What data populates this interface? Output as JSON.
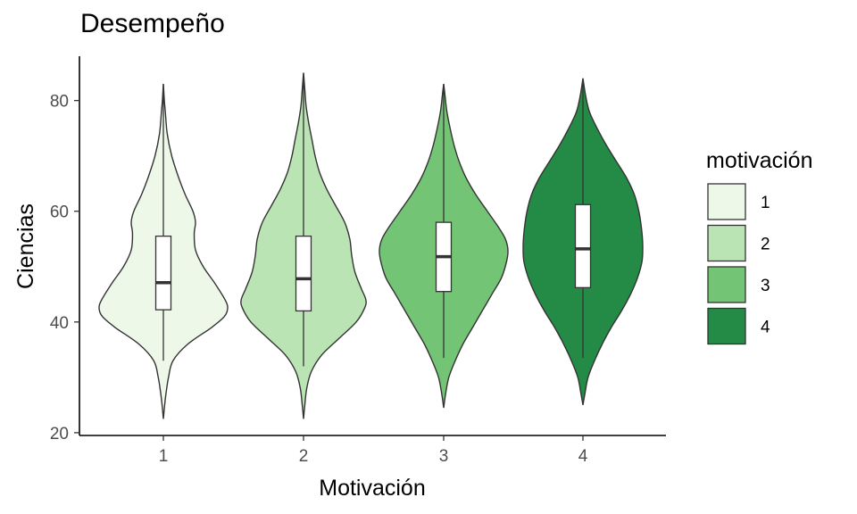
{
  "chart_data": {
    "type": "violin",
    "title": "Desempeño",
    "xlabel": "Motivación",
    "ylabel": "Ciencias",
    "categories": [
      "1",
      "2",
      "3",
      "4"
    ],
    "y_ticks": [
      20,
      40,
      60,
      80
    ],
    "ylim": [
      19.5,
      88
    ],
    "grid": false,
    "legend": {
      "title": "motivación",
      "position": "right",
      "labels": [
        "1",
        "2",
        "3",
        "4"
      ]
    },
    "colors": [
      "#edf8e9",
      "#bae4b3",
      "#74c476",
      "#238b45"
    ],
    "series": [
      {
        "category": "1",
        "fill": "#edf8e9",
        "box": {
          "q1": 42.2,
          "median": 47.1,
          "q3": 55.5,
          "whisker_low": 33,
          "whisker_high": 83
        },
        "density": [
          [
            22.5,
            0.0
          ],
          [
            25,
            0.02
          ],
          [
            27,
            0.04
          ],
          [
            30,
            0.08
          ],
          [
            33,
            0.15
          ],
          [
            36,
            0.38
          ],
          [
            39,
            0.75
          ],
          [
            41,
            0.95
          ],
          [
            42.5,
            1.0
          ],
          [
            44,
            0.96
          ],
          [
            47,
            0.8
          ],
          [
            50,
            0.62
          ],
          [
            53,
            0.5
          ],
          [
            56,
            0.48
          ],
          [
            58,
            0.5
          ],
          [
            60,
            0.46
          ],
          [
            63,
            0.34
          ],
          [
            66,
            0.24
          ],
          [
            70,
            0.13
          ],
          [
            74,
            0.06
          ],
          [
            78,
            0.03
          ],
          [
            80,
            0.015
          ],
          [
            83,
            0.0
          ]
        ]
      },
      {
        "category": "2",
        "fill": "#bae4b3",
        "box": {
          "q1": 42.0,
          "median": 47.8,
          "q3": 55.5,
          "whisker_low": 32,
          "whisker_high": 85
        },
        "density": [
          [
            22.5,
            0.0
          ],
          [
            25,
            0.02
          ],
          [
            28,
            0.05
          ],
          [
            31,
            0.12
          ],
          [
            34,
            0.28
          ],
          [
            37,
            0.55
          ],
          [
            40,
            0.82
          ],
          [
            42.5,
            0.95
          ],
          [
            44,
            0.97
          ],
          [
            46,
            0.9
          ],
          [
            49,
            0.8
          ],
          [
            52,
            0.75
          ],
          [
            55,
            0.72
          ],
          [
            58,
            0.64
          ],
          [
            61,
            0.5
          ],
          [
            64,
            0.36
          ],
          [
            67,
            0.25
          ],
          [
            70,
            0.18
          ],
          [
            73,
            0.13
          ],
          [
            76,
            0.08
          ],
          [
            79,
            0.04
          ],
          [
            82,
            0.02
          ],
          [
            85,
            0.0
          ]
        ]
      },
      {
        "category": "3",
        "fill": "#74c476",
        "box": {
          "q1": 45.5,
          "median": 51.8,
          "q3": 58.0,
          "whisker_low": 33.5,
          "whisker_high": 83
        },
        "density": [
          [
            24.5,
            0.0
          ],
          [
            27,
            0.03
          ],
          [
            30,
            0.08
          ],
          [
            33,
            0.18
          ],
          [
            36,
            0.3
          ],
          [
            39,
            0.45
          ],
          [
            42,
            0.6
          ],
          [
            45,
            0.75
          ],
          [
            48,
            0.9
          ],
          [
            51,
            0.98
          ],
          [
            53,
            1.0
          ],
          [
            55,
            0.96
          ],
          [
            57,
            0.86
          ],
          [
            60,
            0.68
          ],
          [
            63,
            0.5
          ],
          [
            66,
            0.35
          ],
          [
            69,
            0.24
          ],
          [
            72,
            0.16
          ],
          [
            75,
            0.1
          ],
          [
            78,
            0.05
          ],
          [
            81,
            0.02
          ],
          [
            83,
            0.0
          ]
        ]
      },
      {
        "category": "4",
        "fill": "#238b45",
        "box": {
          "q1": 46.2,
          "median": 53.2,
          "q3": 61.2,
          "whisker_low": 33.5,
          "whisker_high": 84
        },
        "density": [
          [
            25,
            0.0
          ],
          [
            27,
            0.03
          ],
          [
            30,
            0.08
          ],
          [
            33,
            0.18
          ],
          [
            36,
            0.3
          ],
          [
            39,
            0.44
          ],
          [
            42,
            0.6
          ],
          [
            45,
            0.74
          ],
          [
            48,
            0.85
          ],
          [
            51,
            0.92
          ],
          [
            54,
            0.93
          ],
          [
            57,
            0.91
          ],
          [
            60,
            0.87
          ],
          [
            63,
            0.8
          ],
          [
            66,
            0.68
          ],
          [
            69,
            0.52
          ],
          [
            72,
            0.36
          ],
          [
            75,
            0.22
          ],
          [
            78,
            0.1
          ],
          [
            81,
            0.04
          ],
          [
            84,
            0.0
          ]
        ]
      }
    ]
  }
}
